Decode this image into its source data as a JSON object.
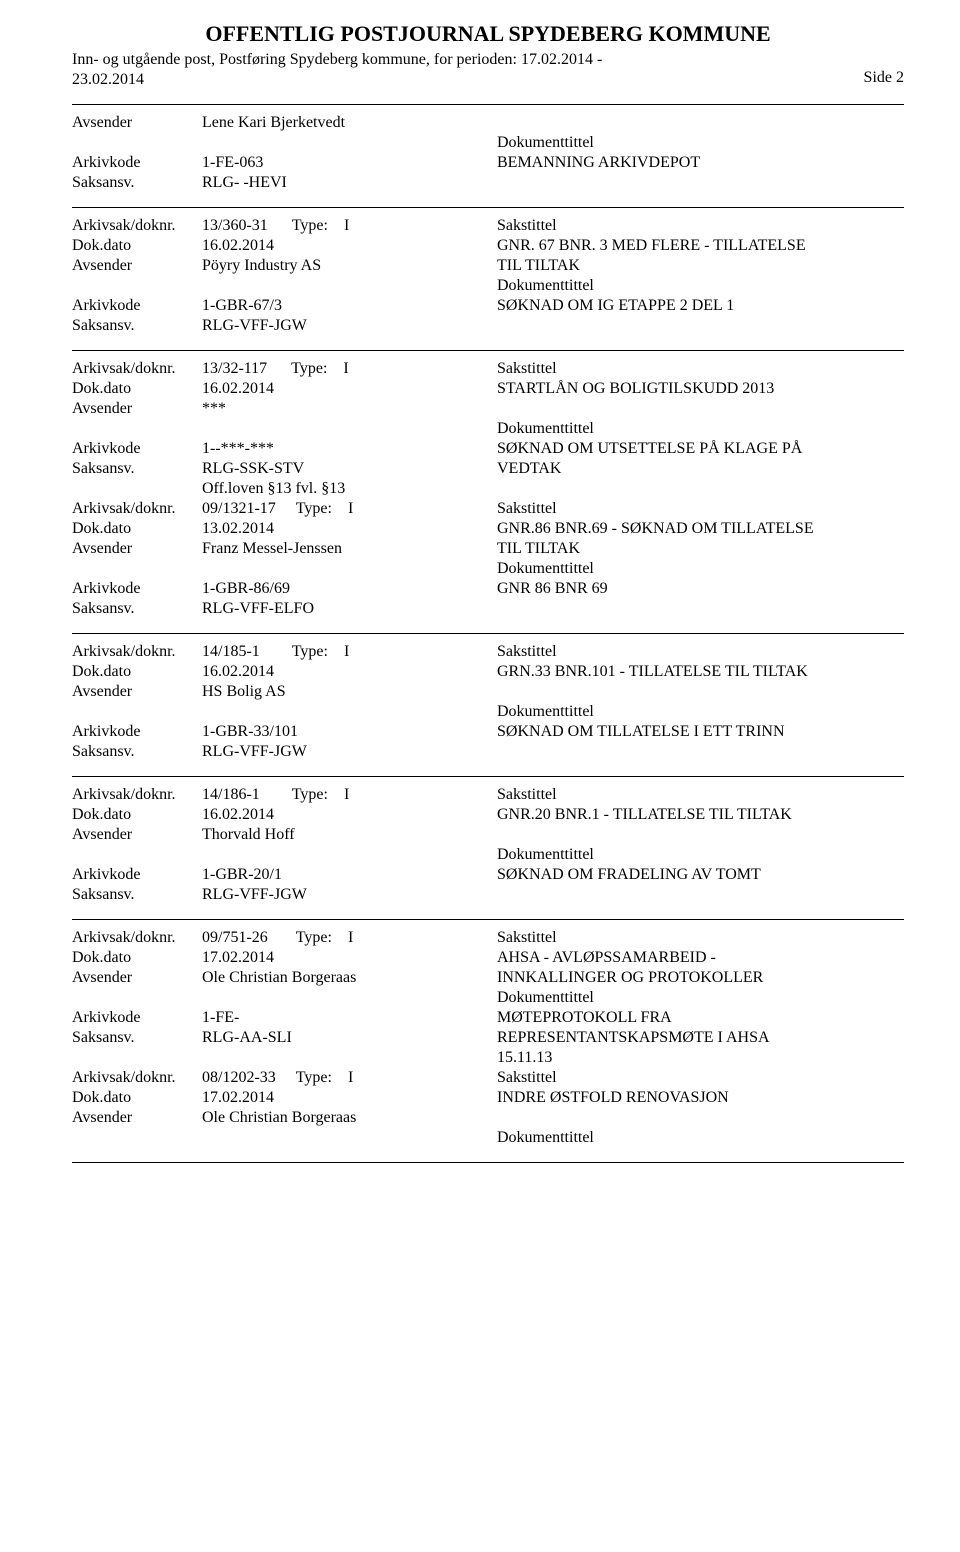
{
  "header": {
    "title": "OFFENTLIG POSTJOURNAL SPYDEBERG KOMMUNE",
    "subtitle_line1": "Inn- og utgående post, Postføring Spydeberg kommune, for perioden: 17.02.2014 -",
    "subtitle_line2": "23.02.2014",
    "page_label": "Side 2"
  },
  "labels": {
    "avsender": "Avsender",
    "arkivkode": "Arkivkode",
    "saksansv": "Saksansv.",
    "arkivsak": "Arkivsak/doknr.",
    "dokdato": "Dok.dato",
    "dokumenttittel": "Dokumenttittel",
    "sakstittel": "Sakstittel"
  },
  "entries": [
    {
      "rows": [
        {
          "label": "Avsender",
          "mid": "Lene Kari Bjerketvedt",
          "right": ""
        },
        {
          "label": "",
          "mid": "",
          "right": "Dokumenttittel"
        },
        {
          "label": "Arkivkode",
          "mid": "1-FE-063",
          "right": "BEMANNING ARKIVDEPOT"
        },
        {
          "label": "Saksansv.",
          "mid": "RLG- -HEVI",
          "right": ""
        }
      ]
    },
    {
      "rows": [
        {
          "label": "Arkivsak/doknr.",
          "mid": "13/360-31      Type:    I",
          "right": "Sakstittel"
        },
        {
          "label": "Dok.dato",
          "mid": "16.02.2014",
          "right": "GNR. 67 BNR. 3 MED FLERE - TILLATELSE"
        },
        {
          "label": "Avsender",
          "mid": "Pöyry Industry AS",
          "right": "TIL TILTAK"
        },
        {
          "label": "",
          "mid": "",
          "right": "Dokumenttittel"
        },
        {
          "label": "Arkivkode",
          "mid": "1-GBR-67/3",
          "right": "SØKNAD OM IG ETAPPE 2 DEL 1"
        },
        {
          "label": "Saksansv.",
          "mid": "RLG-VFF-JGW",
          "right": ""
        }
      ]
    },
    {
      "rows": [
        {
          "label": "Arkivsak/doknr.",
          "mid": "13/32-117      Type:    I",
          "right": "Sakstittel"
        },
        {
          "label": "Dok.dato",
          "mid": "16.02.2014",
          "right": "STARTLÅN OG BOLIGTILSKUDD 2013"
        },
        {
          "label": "Avsender",
          "mid": "***",
          "right": ""
        },
        {
          "label": "",
          "mid": "",
          "right": "Dokumenttittel"
        },
        {
          "label": "Arkivkode",
          "mid": "1--***-***",
          "right": "SØKNAD OM UTSETTELSE PÅ KLAGE PÅ"
        },
        {
          "label": "Saksansv.",
          "mid": "RLG-SSK-STV",
          "right": "VEDTAK"
        },
        {
          "label": "",
          "mid": "Off.loven §13 fvl. §13",
          "right": ""
        },
        {
          "label": "Arkivsak/doknr.",
          "mid": "09/1321-17     Type:    I",
          "right": "Sakstittel"
        },
        {
          "label": "Dok.dato",
          "mid": "13.02.2014",
          "right": "GNR.86 BNR.69 - SØKNAD OM TILLATELSE"
        },
        {
          "label": "Avsender",
          "mid": "Franz Messel-Jenssen",
          "right": "TIL TILTAK"
        },
        {
          "label": "",
          "mid": "",
          "right": "Dokumenttittel"
        },
        {
          "label": "Arkivkode",
          "mid": "1-GBR-86/69",
          "right": "GNR 86 BNR 69"
        },
        {
          "label": "Saksansv.",
          "mid": "RLG-VFF-ELFO",
          "right": ""
        }
      ]
    },
    {
      "rows": [
        {
          "label": "Arkivsak/doknr.",
          "mid": "14/185-1        Type:    I",
          "right": "Sakstittel"
        },
        {
          "label": "Dok.dato",
          "mid": "16.02.2014",
          "right": "GRN.33 BNR.101 - TILLATELSE TIL TILTAK"
        },
        {
          "label": "Avsender",
          "mid": "HS Bolig AS",
          "right": ""
        },
        {
          "label": "",
          "mid": "",
          "right": "Dokumenttittel"
        },
        {
          "label": "Arkivkode",
          "mid": "1-GBR-33/101",
          "right": "SØKNAD OM TILLATELSE I ETT TRINN"
        },
        {
          "label": "Saksansv.",
          "mid": "RLG-VFF-JGW",
          "right": ""
        }
      ]
    },
    {
      "rows": [
        {
          "label": "Arkivsak/doknr.",
          "mid": "14/186-1        Type:    I",
          "right": "Sakstittel"
        },
        {
          "label": "Dok.dato",
          "mid": "16.02.2014",
          "right": "GNR.20 BNR.1 - TILLATELSE TIL TILTAK"
        },
        {
          "label": "Avsender",
          "mid": "Thorvald Hoff",
          "right": ""
        },
        {
          "label": "",
          "mid": "",
          "right": "Dokumenttittel"
        },
        {
          "label": "Arkivkode",
          "mid": "1-GBR-20/1",
          "right": "SØKNAD OM FRADELING AV TOMT"
        },
        {
          "label": "Saksansv.",
          "mid": "RLG-VFF-JGW",
          "right": ""
        }
      ]
    },
    {
      "rows": [
        {
          "label": "Arkivsak/doknr.",
          "mid": "09/751-26       Type:    I",
          "right": "Sakstittel"
        },
        {
          "label": "Dok.dato",
          "mid": "17.02.2014",
          "right": "AHSA - AVLØPSSAMARBEID -"
        },
        {
          "label": "Avsender",
          "mid": "Ole Christian Borgeraas",
          "right": "INNKALLINGER OG PROTOKOLLER"
        },
        {
          "label": "",
          "mid": "",
          "right": "Dokumenttittel"
        },
        {
          "label": "Arkivkode",
          "mid": "1-FE-",
          "right": "MØTEPROTOKOLL FRA"
        },
        {
          "label": "Saksansv.",
          "mid": "RLG-AA-SLI",
          "right": "REPRESENTANTSKAPSMØTE I AHSA"
        },
        {
          "label": "",
          "mid": "",
          "right": "15.11.13"
        },
        {
          "label": "Arkivsak/doknr.",
          "mid": "08/1202-33     Type:    I",
          "right": "Sakstittel"
        },
        {
          "label": "Dok.dato",
          "mid": "17.02.2014",
          "right": "INDRE ØSTFOLD RENOVASJON"
        },
        {
          "label": "Avsender",
          "mid": "Ole Christian Borgeraas",
          "right": ""
        },
        {
          "label": "",
          "mid": "",
          "right": "Dokumenttittel"
        }
      ]
    }
  ]
}
